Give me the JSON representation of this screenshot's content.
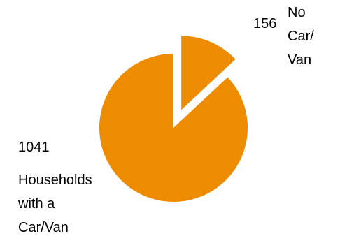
{
  "chart_data": {
    "type": "pie",
    "categories": [
      "No Car/Van",
      "Households with a Car/Van"
    ],
    "values": [
      156,
      1041
    ],
    "exploded": [
      "No Car/Van"
    ],
    "color": "#ee8c00",
    "legend": "none",
    "data_labels": [
      {
        "value_text": "156",
        "name_lines": [
          "No",
          "Car/",
          "Van"
        ]
      },
      {
        "value_text": "1041",
        "name_lines": [
          "Households",
          "with a",
          "Car/Van"
        ]
      }
    ]
  }
}
